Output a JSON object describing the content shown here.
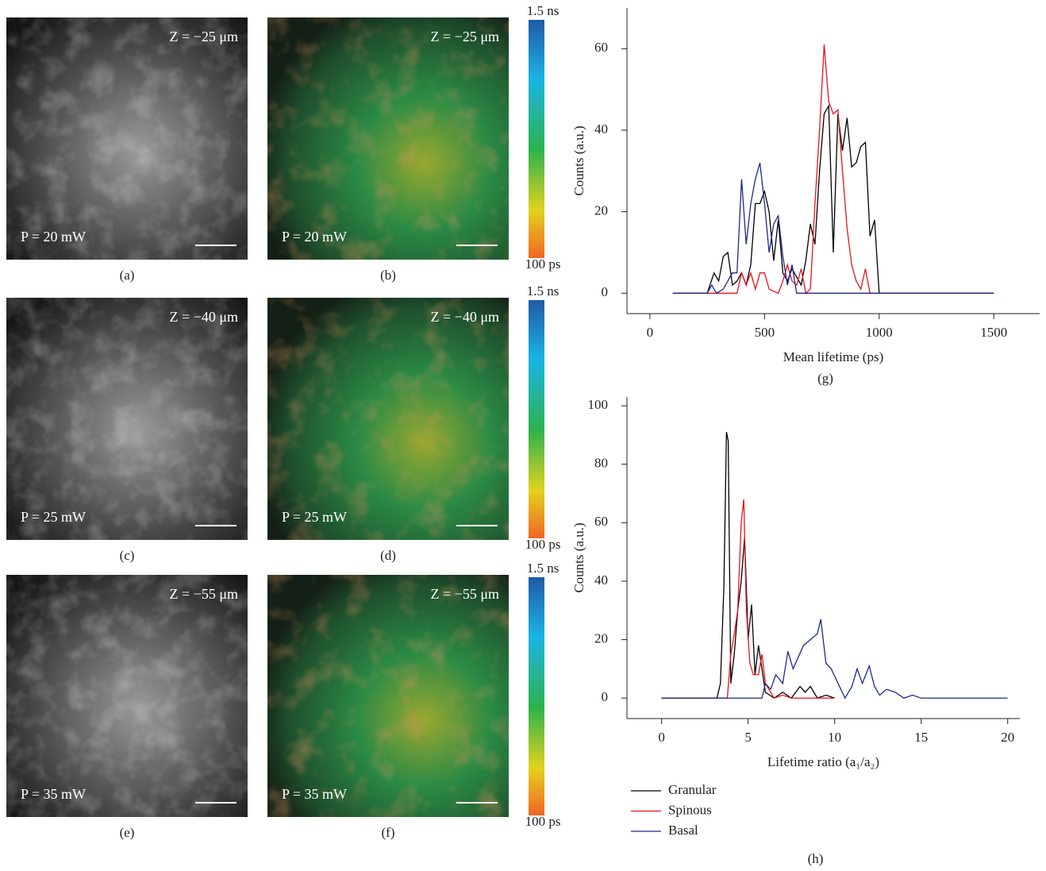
{
  "panels": [
    {
      "caption": "(a)",
      "z": "Z = −25 μm",
      "p": "P = 20 mW",
      "kind": "gray"
    },
    {
      "caption": "(b)",
      "z": "Z = −25 μm",
      "p": "P = 20 mW",
      "kind": "color"
    },
    {
      "caption": "(c)",
      "z": "Z = −40 μm",
      "p": "P = 25 mW",
      "kind": "gray"
    },
    {
      "caption": "(d)",
      "z": "Z = −40 μm",
      "p": "P = 25 mW",
      "kind": "color"
    },
    {
      "caption": "(e)",
      "z": "Z = −55 μm",
      "p": "P = 35 mW",
      "kind": "gray"
    },
    {
      "caption": "(f)",
      "z": "Z = −55 μm",
      "p": "P = 35 mW",
      "kind": "color"
    }
  ],
  "colorbars": [
    {
      "top": "1.5 ns",
      "bottom": "100 ps"
    },
    {
      "top": "1.5 ns",
      "bottom": "100 ps"
    },
    {
      "top": "1.5 ns",
      "bottom": "100 ps"
    }
  ],
  "chart_data": [
    {
      "type": "line",
      "caption": "(g)",
      "xlabel": "Mean lifetime (ps)",
      "ylabel": "Counts (a.u.)",
      "xlim": [
        -100,
        1700
      ],
      "ylim": [
        -5,
        70
      ],
      "xticks": [
        0,
        500,
        1000,
        1500
      ],
      "yticks": [
        0,
        20,
        40,
        60
      ],
      "series": [
        {
          "color": "#000000",
          "x": [
            100,
            250,
            280,
            300,
            320,
            340,
            360,
            380,
            400,
            420,
            440,
            460,
            480,
            500,
            520,
            540,
            560,
            580,
            600,
            620,
            640,
            660,
            680,
            700,
            720,
            740,
            760,
            780,
            800,
            820,
            840,
            860,
            880,
            900,
            920,
            940,
            960,
            980,
            1000,
            1020,
            1500
          ],
          "values": [
            0,
            0,
            5,
            3,
            9,
            10,
            2,
            3,
            5,
            2,
            7,
            22,
            22,
            25,
            20,
            8,
            18,
            5,
            3,
            6,
            4,
            2,
            8,
            17,
            12,
            30,
            44,
            46,
            10,
            44,
            35,
            43,
            31,
            32,
            36,
            37,
            14,
            18,
            0,
            0,
            0
          ]
        },
        {
          "color": "#e8141c",
          "x": [
            100,
            380,
            400,
            420,
            440,
            460,
            480,
            500,
            520,
            560,
            580,
            600,
            620,
            640,
            660,
            680,
            700,
            720,
            740,
            760,
            780,
            800,
            820,
            840,
            860,
            880,
            900,
            920,
            940,
            960,
            1500
          ],
          "values": [
            0,
            0,
            5,
            2,
            5,
            1,
            5,
            5,
            1,
            0,
            3,
            7,
            3,
            2,
            6,
            0,
            1,
            22,
            40,
            61,
            47,
            44,
            45,
            30,
            16,
            7,
            3,
            1,
            6,
            0,
            0
          ]
        },
        {
          "color": "#1c2a8c",
          "x": [
            100,
            250,
            270,
            290,
            320,
            340,
            360,
            380,
            400,
            420,
            440,
            460,
            480,
            500,
            520,
            540,
            560,
            580,
            600,
            620,
            640,
            1500
          ],
          "values": [
            0,
            0,
            2,
            0,
            1,
            3,
            5,
            5,
            28,
            12,
            22,
            28,
            32,
            22,
            10,
            17,
            19,
            9,
            2,
            7,
            0,
            0
          ]
        }
      ]
    },
    {
      "type": "line",
      "caption": "(h)",
      "xlabel": "Lifetime ratio (a₁/a₂)",
      "ylabel": "Counts (a.u.)",
      "xlim": [
        -2,
        20.7
      ],
      "ylim": [
        -7,
        103
      ],
      "xticks": [
        0,
        5,
        10,
        15,
        20
      ],
      "yticks": [
        0,
        20,
        40,
        60,
        80,
        100
      ],
      "series": [
        {
          "name": "Granular",
          "color": "#000000",
          "x": [
            0,
            3.2,
            3.4,
            3.6,
            3.75,
            3.85,
            4.0,
            4.2,
            4.4,
            4.6,
            4.8,
            5.0,
            5.2,
            5.4,
            5.6,
            5.8,
            6.0,
            6.5,
            7,
            7.5,
            8,
            8.3,
            8.6,
            9,
            9.5,
            10
          ],
          "values": [
            0,
            0,
            5,
            38,
            91,
            88,
            5,
            15,
            30,
            40,
            55,
            20,
            32,
            8,
            18,
            10,
            2,
            0,
            2,
            0,
            4,
            2,
            4,
            0,
            1,
            0
          ]
        },
        {
          "name": "Spinous",
          "color": "#e8141c",
          "x": [
            0,
            3.8,
            4.0,
            4.2,
            4.4,
            4.6,
            4.75,
            4.9,
            5.1,
            5.3,
            5.6,
            5.8,
            6,
            6.5,
            7,
            7.5,
            8,
            10
          ],
          "values": [
            0,
            0,
            15,
            22,
            30,
            60,
            68,
            30,
            12,
            8,
            8,
            15,
            5,
            0,
            1,
            0,
            0,
            0
          ]
        },
        {
          "name": "Basal",
          "color": "#1c2a8c",
          "x": [
            0,
            5,
            5.8,
            6.0,
            6.3,
            6.6,
            7,
            7.3,
            7.6,
            7.9,
            8.2,
            8.6,
            9,
            9.2,
            9.5,
            9.8,
            10.2,
            10.6,
            11,
            11.3,
            11.6,
            12,
            12.3,
            12.6,
            13,
            13.5,
            14,
            14.5,
            15,
            20
          ],
          "values": [
            0,
            0,
            0,
            5,
            3,
            8,
            5,
            16,
            10,
            14,
            18,
            20,
            22,
            27,
            12,
            10,
            5,
            0,
            4,
            10,
            5,
            11,
            4,
            1,
            3,
            2,
            0,
            1,
            0,
            0
          ]
        }
      ]
    }
  ]
}
